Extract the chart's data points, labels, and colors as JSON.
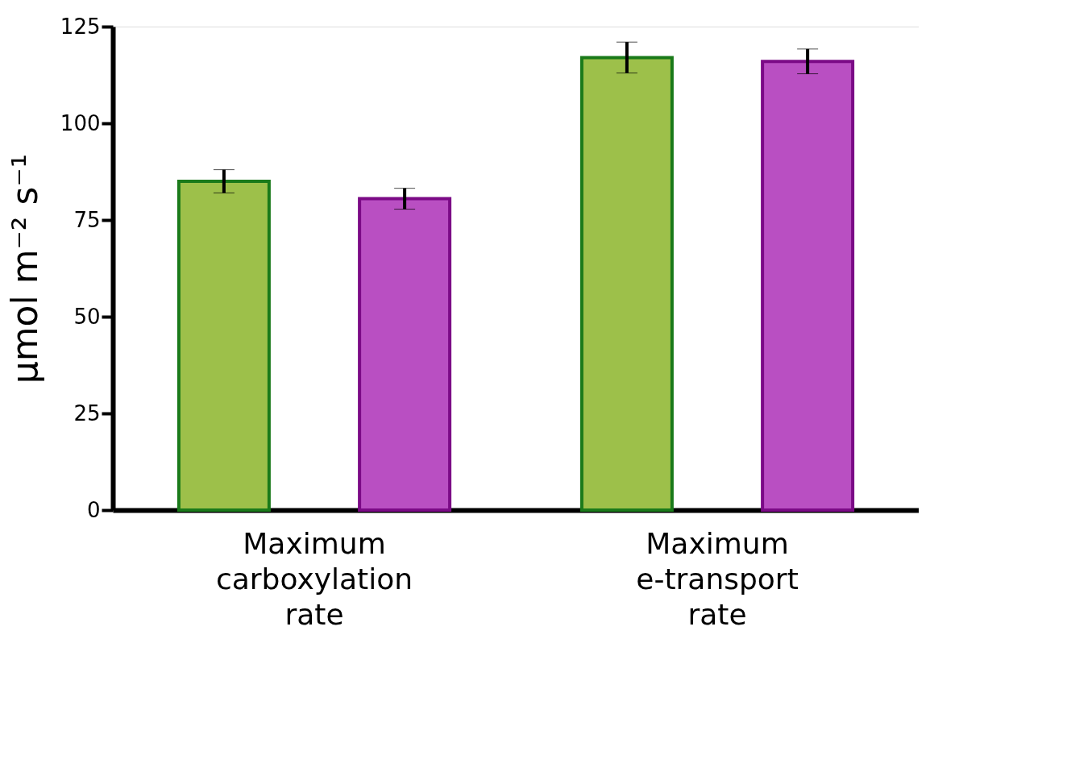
{
  "chart_data": {
    "type": "bar",
    "categories": [
      "Maximum carboxylation rate",
      "Maximum e-transport rate"
    ],
    "series": [
      {
        "color": "#9dc04a",
        "values": [
          85,
          117
        ],
        "errors": [
          3,
          4
        ]
      },
      {
        "color": "#b94fc2",
        "values": [
          80.5,
          116
        ],
        "errors": [
          2.7,
          3.2
        ]
      }
    ],
    "ylabel": "μmol m⁻² s⁻¹",
    "ylim": [
      0,
      125
    ],
    "yticks": [
      0,
      25,
      50,
      75,
      100,
      125
    ],
    "grid": false
  }
}
